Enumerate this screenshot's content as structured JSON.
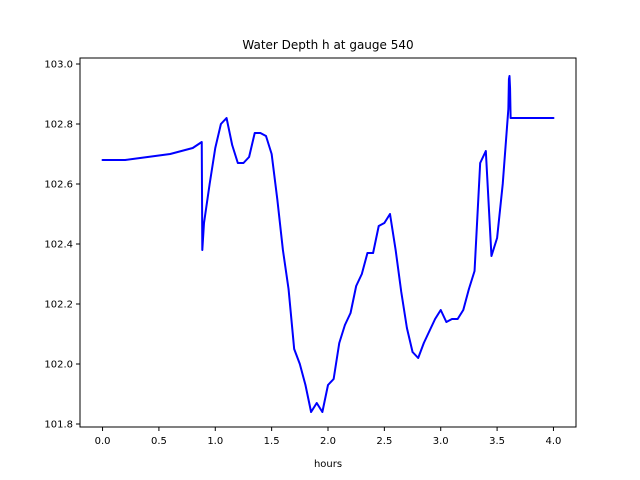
{
  "chart_data": {
    "type": "line",
    "title": "Water Depth h at gauge 540",
    "xlabel": "hours",
    "ylabel": "",
    "xlim": [
      -0.2,
      4.2
    ],
    "ylim": [
      101.79,
      103.02
    ],
    "grid": false,
    "x_ticks": [
      0.0,
      0.5,
      1.0,
      1.5,
      2.0,
      2.5,
      3.0,
      3.5,
      4.0
    ],
    "x_tick_labels": [
      "0.0",
      "0.5",
      "1.0",
      "1.5",
      "2.0",
      "2.5",
      "3.0",
      "3.5",
      "4.0"
    ],
    "y_ticks": [
      101.8,
      102.0,
      102.2,
      102.4,
      102.6,
      102.8,
      103.0
    ],
    "y_tick_labels": [
      "101.8",
      "102.0",
      "102.2",
      "102.4",
      "102.6",
      "102.8",
      "103.0"
    ],
    "series": [
      {
        "color": "#0000ff",
        "x": [
          0.0,
          0.2,
          0.4,
          0.6,
          0.7,
          0.8,
          0.88,
          0.885,
          0.9,
          0.95,
          1.0,
          1.05,
          1.1,
          1.15,
          1.2,
          1.25,
          1.3,
          1.35,
          1.4,
          1.45,
          1.5,
          1.55,
          1.6,
          1.65,
          1.7,
          1.75,
          1.8,
          1.85,
          1.9,
          1.95,
          2.0,
          2.05,
          2.1,
          2.15,
          2.2,
          2.25,
          2.3,
          2.35,
          2.4,
          2.45,
          2.5,
          2.55,
          2.6,
          2.65,
          2.7,
          2.75,
          2.8,
          2.85,
          2.9,
          2.95,
          3.0,
          3.05,
          3.1,
          3.15,
          3.2,
          3.25,
          3.3,
          3.35,
          3.4,
          3.45,
          3.5,
          3.55,
          3.6,
          3.605,
          3.61,
          3.615,
          3.62,
          3.65,
          3.7,
          3.75,
          3.8,
          3.85,
          3.9,
          3.95,
          4.0
        ],
        "y": [
          102.68,
          102.68,
          102.69,
          102.7,
          102.71,
          102.72,
          102.74,
          102.38,
          102.47,
          102.6,
          102.72,
          102.8,
          102.82,
          102.73,
          102.67,
          102.67,
          102.69,
          102.77,
          102.77,
          102.76,
          102.7,
          102.55,
          102.38,
          102.25,
          102.05,
          102.0,
          101.93,
          101.84,
          101.87,
          101.84,
          101.93,
          101.95,
          102.07,
          102.13,
          102.17,
          102.26,
          102.3,
          102.37,
          102.37,
          102.46,
          102.47,
          102.5,
          102.38,
          102.24,
          102.12,
          102.04,
          102.02,
          102.07,
          102.11,
          102.15,
          102.18,
          102.14,
          102.15,
          102.15,
          102.18,
          102.25,
          102.31,
          102.67,
          102.71,
          102.36,
          102.42,
          102.6,
          102.85,
          102.95,
          102.96,
          102.92,
          102.82,
          102.82,
          102.82,
          102.82,
          102.82,
          102.82,
          102.82,
          102.82,
          102.82
        ]
      }
    ]
  }
}
